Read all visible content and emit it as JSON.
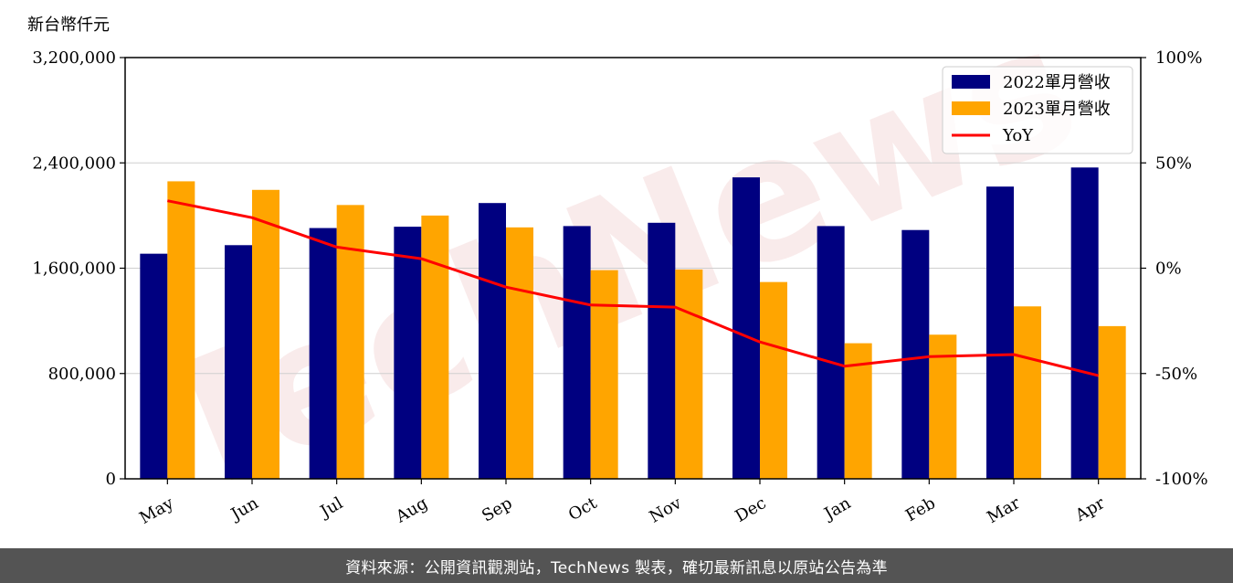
{
  "footer": {
    "text": "資料來源：公開資訊觀測站，TechNews 製表，確切最新訊息以原站公告為準"
  },
  "watermark": {
    "text": "TechNews"
  },
  "chart_data": {
    "type": "bar",
    "unit_label": "新台幣仟元",
    "categories": [
      "May",
      "Jun",
      "Jul",
      "Aug",
      "Sep",
      "Oct",
      "Nov",
      "Dec",
      "Jan",
      "Feb",
      "Mar",
      "Apr"
    ],
    "series": [
      {
        "name": "2022單月營收",
        "type": "bar",
        "color": "#000080",
        "values": [
          1710000,
          1775000,
          1905000,
          1915000,
          2095000,
          1920000,
          1945000,
          2290000,
          1920000,
          1890000,
          2220000,
          2365000
        ]
      },
      {
        "name": "2023單月營收",
        "type": "bar",
        "color": "#ffa500",
        "values": [
          2260000,
          2195000,
          2080000,
          2000000,
          1910000,
          1585000,
          1590000,
          1495000,
          1030000,
          1095000,
          1310000,
          1160000
        ]
      },
      {
        "name": "YoY",
        "type": "line",
        "axis": "right",
        "color": "#ff0000",
        "values": [
          32,
          24,
          10,
          4.5,
          -9,
          -17.5,
          -18.5,
          -35,
          -46.5,
          -42,
          -41,
          -51
        ]
      }
    ],
    "y_left": {
      "lim": [
        0,
        3200000
      ],
      "ticks": [
        0,
        800000,
        1600000,
        2400000,
        3200000
      ],
      "tick_labels": [
        "0",
        "800,000",
        "1,600,000",
        "2,400,000",
        "3,200,000"
      ]
    },
    "y_right": {
      "lim": [
        -100,
        100
      ],
      "ticks": [
        -100,
        -50,
        0,
        50,
        100
      ],
      "tick_labels": [
        "-100%",
        "-50%",
        "0%",
        "50%",
        "100%"
      ]
    },
    "grid": "horizontal",
    "legend_position": "top-right"
  }
}
